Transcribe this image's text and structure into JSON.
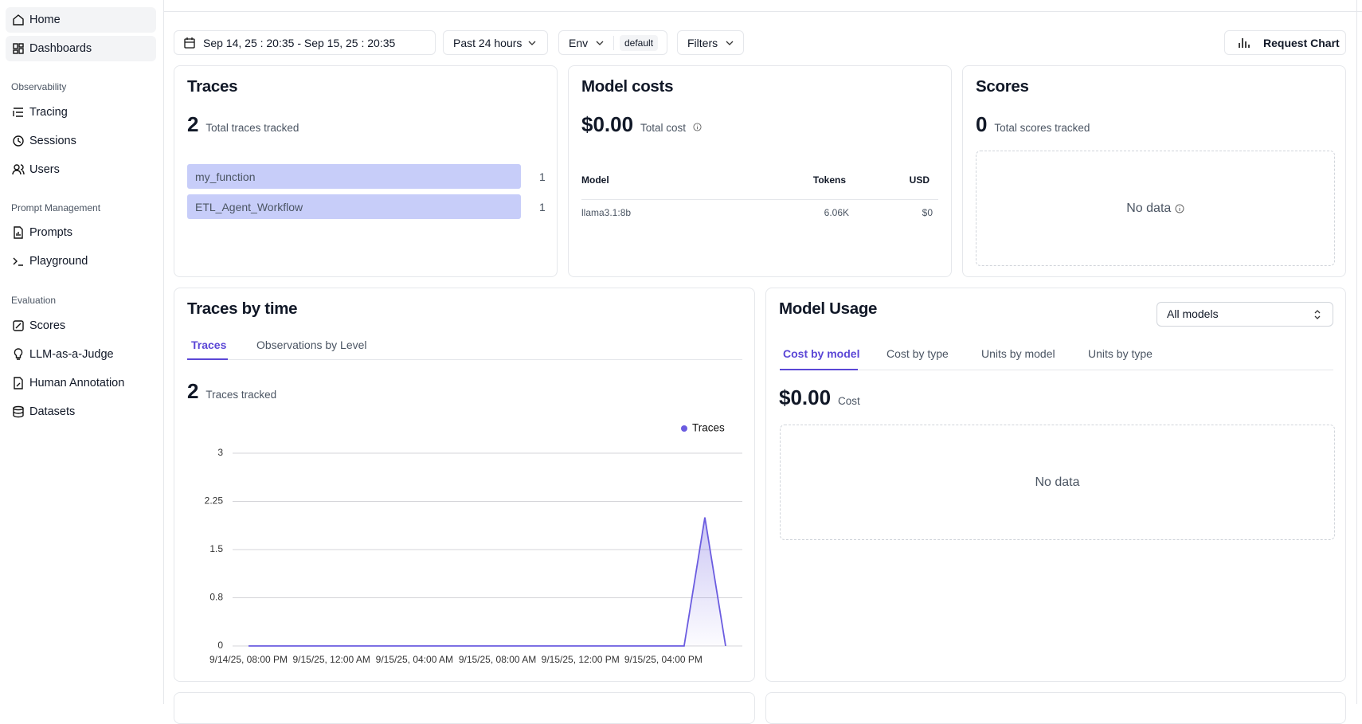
{
  "sidebar": {
    "top": [
      "Home",
      "Dashboards"
    ],
    "groups": [
      {
        "title": "Observability",
        "items": [
          "Tracing",
          "Sessions",
          "Users"
        ]
      },
      {
        "title": "Prompt Management",
        "items": [
          "Prompts",
          "Playground"
        ]
      },
      {
        "title": "Evaluation",
        "items": [
          "Scores",
          "LLM-as-a-Judge",
          "Human Annotation",
          "Datasets"
        ]
      }
    ]
  },
  "toolbar": {
    "date_range": "Sep 14, 25 : 20:35 - Sep 15, 25 : 20:35",
    "period": "Past 24 hours",
    "env": "Env",
    "env_value": "default",
    "filters": "Filters",
    "request_chart": "Request Chart"
  },
  "traces": {
    "title": "Traces",
    "total": 2,
    "total_label": "Total traces tracked",
    "rows": [
      {
        "name": "my_function",
        "count": 1
      },
      {
        "name": "ETL_Agent_Workflow",
        "count": 1
      }
    ]
  },
  "model_costs": {
    "title": "Model costs",
    "total": "$0.00",
    "total_label": "Total cost",
    "columns": [
      "Model",
      "Tokens",
      "USD"
    ],
    "rows": [
      [
        "llama3.1:8b",
        "6.06K",
        "$0"
      ]
    ]
  },
  "scores": {
    "title": "Scores",
    "total": 0,
    "total_label": "Total scores tracked",
    "empty": "No data"
  },
  "traces_by_time": {
    "title": "Traces by time",
    "tabs": [
      "Traces",
      "Observations by Level"
    ],
    "total": 2,
    "total_label": "Traces tracked",
    "chart": {
      "type": "line",
      "categories": [
        "9/14/25, 08:00 PM",
        null,
        null,
        null,
        "9/15/25, 12:00 AM",
        null,
        null,
        null,
        "9/15/25, 04:00 AM",
        null,
        null,
        null,
        "9/15/25, 08:00 AM",
        null,
        null,
        null,
        "9/15/25, 12:00 PM",
        null,
        null,
        null,
        "9/15/25, 04:00 PM",
        null,
        null,
        null
      ],
      "series": [
        {
          "name": "Traces",
          "color": "#6b5ce0",
          "values": [
            0,
            0,
            0,
            0,
            0,
            0,
            0,
            0,
            0,
            0,
            0,
            0,
            0,
            0,
            0,
            0,
            0,
            0,
            0,
            0,
            0,
            0,
            2,
            0
          ]
        }
      ],
      "ylim": [
        0,
        3
      ],
      "yticks": [
        0,
        {
          "value": 0.75,
          "label": "0.8"
        },
        1.5,
        2.25,
        3
      ],
      "grid": true,
      "legend": "top-right"
    }
  },
  "model_usage": {
    "title": "Model Usage",
    "select": "All models",
    "tabs": [
      "Cost by model",
      "Cost by type",
      "Units by model",
      "Units by type"
    ],
    "total": "$0.00",
    "total_label": "Cost",
    "empty": "No data"
  }
}
